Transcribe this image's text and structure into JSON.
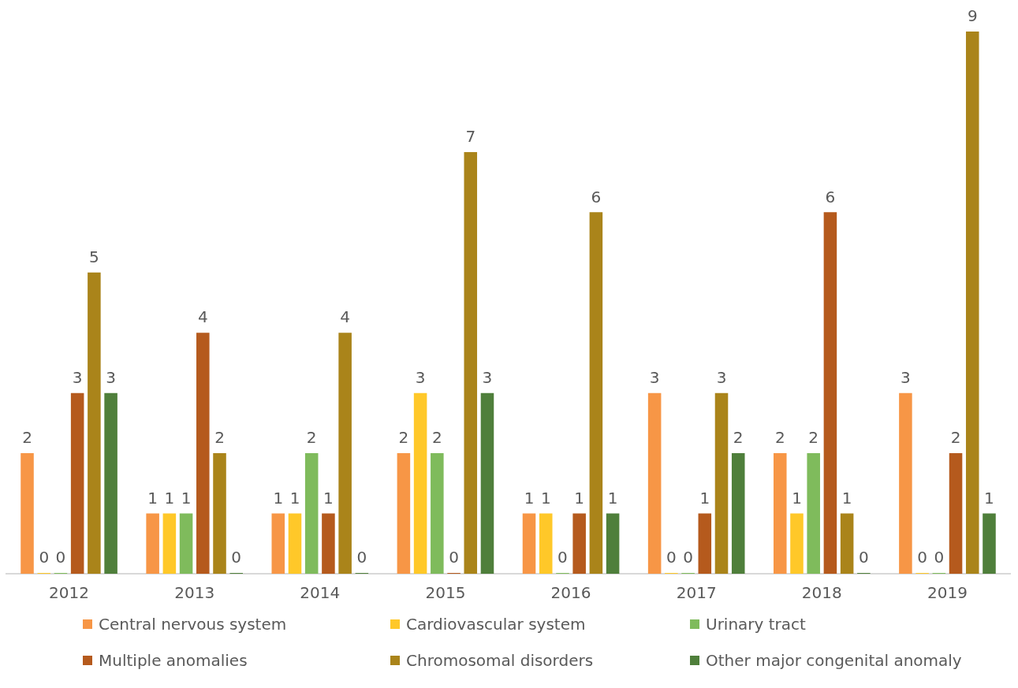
{
  "chart_data": {
    "type": "bar",
    "categories": [
      "2012",
      "2013",
      "2014",
      "2015",
      "2016",
      "2017",
      "2018",
      "2019"
    ],
    "series": [
      {
        "name": "Central nervous system",
        "color": "#f79646",
        "values": [
          2,
          1,
          1,
          2,
          1,
          3,
          2,
          3
        ]
      },
      {
        "name": "Cardiovascular system",
        "color": "#ffc829",
        "values": [
          0,
          1,
          1,
          3,
          1,
          0,
          1,
          0
        ]
      },
      {
        "name": "Urinary tract",
        "color": "#7fbb5c",
        "values": [
          0,
          1,
          2,
          2,
          0,
          0,
          2,
          0
        ]
      },
      {
        "name": "Multiple anomalies",
        "color": "#b55a1d",
        "values": [
          3,
          4,
          1,
          0,
          1,
          1,
          6,
          2
        ]
      },
      {
        "name": "Chromosomal disorders",
        "color": "#aa841a",
        "values": [
          5,
          2,
          4,
          7,
          6,
          3,
          1,
          9
        ]
      },
      {
        "name": "Other major congenital anomaly",
        "color": "#4f7f3b",
        "values": [
          3,
          0,
          0,
          3,
          1,
          2,
          0,
          1
        ]
      }
    ],
    "data_labels": true,
    "grid": false,
    "legend": "bottom",
    "tick_labels": "x"
  }
}
